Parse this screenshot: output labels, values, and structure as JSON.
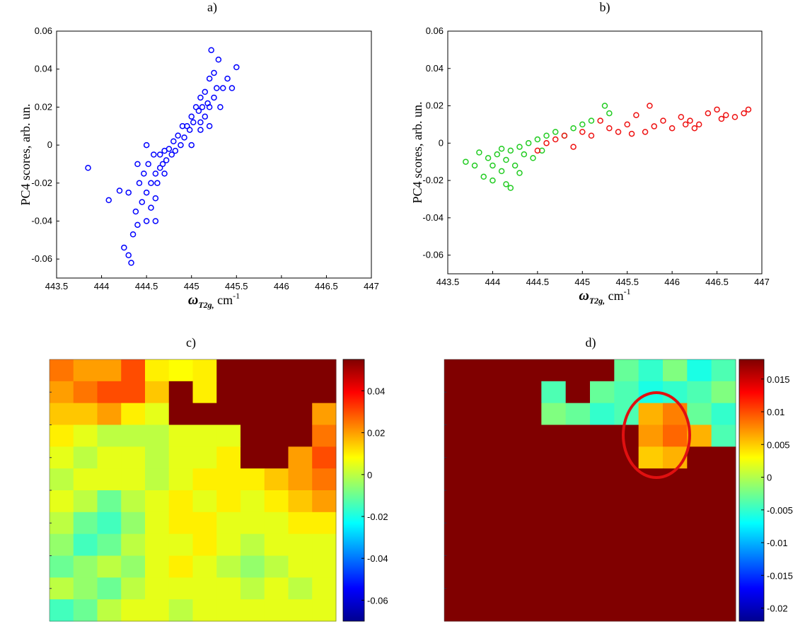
{
  "chart_data": [
    {
      "type": "scatter",
      "title": "a)",
      "ylabel": "PC4 scores, arb. un.",
      "xlabel": {
        "symbol": "ω",
        "subscript": "T2g,",
        "unit": " cm",
        "exponent": "-1"
      },
      "xlim": [
        443.5,
        447
      ],
      "xticks": [
        443.5,
        444,
        444.5,
        445,
        445.5,
        446,
        446.5,
        447
      ],
      "ylim": [
        -0.07,
        0.06
      ],
      "yticks": [
        0.06,
        0.04,
        0.02,
        0,
        -0.02,
        -0.04,
        -0.06
      ],
      "series": [
        {
          "color": "#0000ff",
          "x": [
            443.85,
            444.08,
            444.2,
            444.25,
            444.3,
            444.33,
            444.35,
            444.38,
            444.4,
            444.42,
            444.45,
            444.47,
            444.5,
            444.5,
            444.52,
            444.55,
            444.55,
            444.58,
            444.6,
            444.6,
            444.62,
            444.65,
            444.65,
            444.68,
            444.7,
            444.72,
            444.75,
            444.78,
            444.8,
            444.82,
            444.85,
            444.88,
            444.9,
            444.92,
            444.95,
            444.98,
            445.0,
            445.02,
            445.05,
            445.08,
            445.1,
            445.1,
            445.12,
            445.15,
            445.15,
            445.18,
            445.2,
            445.2,
            445.22,
            445.25,
            445.25,
            445.28,
            445.3,
            445.32,
            445.35,
            445.4,
            445.45,
            445.5,
            444.3,
            444.4,
            444.5,
            444.6,
            444.7,
            445.0,
            445.1,
            445.2
          ],
          "values": [
            -0.012,
            -0.029,
            -0.024,
            -0.054,
            -0.058,
            -0.062,
            -0.047,
            -0.035,
            -0.042,
            -0.02,
            -0.03,
            -0.015,
            -0.025,
            -0.04,
            -0.01,
            -0.02,
            -0.033,
            -0.005,
            -0.015,
            -0.028,
            -0.02,
            -0.005,
            -0.012,
            -0.01,
            -0.003,
            -0.008,
            -0.002,
            -0.005,
            0.002,
            -0.003,
            0.005,
            0.0,
            0.01,
            0.004,
            0.01,
            0.008,
            0.015,
            0.012,
            0.02,
            0.018,
            0.025,
            0.012,
            0.02,
            0.028,
            0.015,
            0.022,
            0.035,
            0.02,
            0.05,
            0.025,
            0.038,
            0.03,
            0.045,
            0.02,
            0.03,
            0.035,
            0.03,
            0.041,
            -0.025,
            -0.01,
            0.0,
            -0.04,
            -0.015,
            0.0,
            0.008,
            0.01
          ]
        }
      ]
    },
    {
      "type": "scatter",
      "title": "b)",
      "ylabel": "PC4 scores, arb. un.",
      "xlabel": {
        "symbol": "ω",
        "subscript": "T2g,",
        "unit": " cm",
        "exponent": "-1"
      },
      "xlim": [
        443.5,
        447
      ],
      "xticks": [
        443.5,
        444,
        444.5,
        445,
        445.5,
        446,
        446.5,
        447
      ],
      "ylim": [
        -0.07,
        0.06
      ],
      "yticks": [
        0.06,
        0.04,
        0.02,
        0,
        -0.02,
        -0.04,
        -0.06
      ],
      "series": [
        {
          "color": "#22cc22",
          "x": [
            443.7,
            443.8,
            443.85,
            443.9,
            443.95,
            444.0,
            444.0,
            444.05,
            444.1,
            444.1,
            444.15,
            444.15,
            444.2,
            444.2,
            444.25,
            444.3,
            444.3,
            444.35,
            444.4,
            444.45,
            444.5,
            444.55,
            444.6,
            444.7,
            444.8,
            444.9,
            445.0,
            445.1,
            445.25,
            445.3
          ],
          "values": [
            -0.01,
            -0.012,
            -0.005,
            -0.018,
            -0.008,
            -0.012,
            -0.02,
            -0.006,
            -0.015,
            -0.003,
            -0.022,
            -0.009,
            -0.024,
            -0.004,
            -0.012,
            -0.002,
            -0.016,
            -0.006,
            0.0,
            -0.008,
            0.002,
            -0.004,
            0.004,
            0.006,
            0.004,
            0.008,
            0.01,
            0.012,
            0.02,
            0.016
          ]
        },
        {
          "color": "#ee1111",
          "x": [
            444.5,
            444.6,
            444.7,
            444.8,
            444.9,
            445.0,
            445.1,
            445.2,
            445.3,
            445.4,
            445.5,
            445.6,
            445.7,
            445.75,
            445.8,
            445.9,
            446.0,
            446.1,
            446.15,
            446.2,
            446.3,
            446.4,
            446.5,
            446.55,
            446.6,
            446.7,
            446.8,
            446.85,
            445.55,
            446.25
          ],
          "values": [
            -0.004,
            0.0,
            0.002,
            0.004,
            -0.002,
            0.006,
            0.004,
            0.012,
            0.008,
            0.006,
            0.01,
            0.015,
            0.006,
            0.02,
            0.009,
            0.012,
            0.008,
            0.014,
            0.01,
            0.012,
            0.01,
            0.016,
            0.018,
            0.013,
            0.015,
            0.014,
            0.016,
            0.018,
            0.005,
            0.008
          ]
        }
      ]
    },
    {
      "type": "heatmap",
      "title": "c)",
      "zlim": [
        -0.07,
        0.055
      ],
      "colorbar_ticks": [
        0.04,
        0.02,
        0,
        -0.02,
        -0.04,
        -0.06
      ],
      "z": [
        [
          0.025,
          0.02,
          0.02,
          0.03,
          0.01,
          0.008,
          0.01,
          0.055,
          0.055,
          0.055,
          0.055,
          0.055
        ],
        [
          0.02,
          0.025,
          0.03,
          0.03,
          0.015,
          0.055,
          0.01,
          0.055,
          0.055,
          0.055,
          0.055,
          0.055
        ],
        [
          0.015,
          0.015,
          0.02,
          0.01,
          0.005,
          0.055,
          0.055,
          0.055,
          0.055,
          0.055,
          0.055,
          0.02
        ],
        [
          0.01,
          0.005,
          0.0,
          0.0,
          0.0,
          0.005,
          0.005,
          0.005,
          0.055,
          0.055,
          0.055,
          0.025
        ],
        [
          0.005,
          0.0,
          0.005,
          0.005,
          0.0,
          0.005,
          0.005,
          0.01,
          0.055,
          0.055,
          0.02,
          0.03
        ],
        [
          0.0,
          0.005,
          0.005,
          0.005,
          0.0,
          0.005,
          0.01,
          0.01,
          0.01,
          0.015,
          0.02,
          0.025
        ],
        [
          0.005,
          0.0,
          -0.01,
          0.0,
          0.005,
          0.01,
          0.005,
          0.01,
          0.005,
          0.01,
          0.015,
          0.02
        ],
        [
          0.0,
          -0.01,
          -0.015,
          -0.005,
          0.005,
          0.01,
          0.01,
          0.005,
          0.005,
          0.005,
          0.01,
          0.01
        ],
        [
          -0.005,
          -0.015,
          -0.01,
          0.0,
          0.005,
          0.005,
          0.01,
          0.005,
          0.0,
          0.005,
          0.005,
          0.005
        ],
        [
          -0.01,
          -0.005,
          0.0,
          -0.005,
          0.005,
          0.01,
          0.005,
          0.0,
          -0.005,
          0.0,
          0.005,
          0.005
        ],
        [
          0.0,
          -0.005,
          -0.01,
          0.0,
          0.005,
          0.005,
          0.005,
          0.005,
          0.0,
          0.005,
          0.0,
          0.005
        ],
        [
          -0.015,
          -0.01,
          0.0,
          0.005,
          0.005,
          0.0,
          0.005,
          0.005,
          0.005,
          0.005,
          0.005,
          0.005
        ]
      ]
    },
    {
      "type": "heatmap",
      "title": "d)",
      "zlim": [
        -0.022,
        0.018
      ],
      "colorbar_ticks": [
        0.015,
        0.01,
        0.005,
        0,
        -0.005,
        -0.01,
        -0.015,
        -0.02
      ],
      "z": [
        [
          0.018,
          0.018,
          0.018,
          0.018,
          0.018,
          0.018,
          0.018,
          -0.003,
          -0.005,
          -0.002,
          -0.006,
          -0.004
        ],
        [
          0.018,
          0.018,
          0.018,
          0.018,
          -0.004,
          0.018,
          -0.003,
          -0.004,
          -0.006,
          -0.005,
          -0.004,
          -0.002
        ],
        [
          0.018,
          0.018,
          0.018,
          0.018,
          -0.002,
          -0.003,
          -0.005,
          -0.004,
          0.006,
          0.008,
          -0.003,
          -0.005
        ],
        [
          0.018,
          0.018,
          0.018,
          0.018,
          0.018,
          0.018,
          0.018,
          0.018,
          0.007,
          0.009,
          0.006,
          -0.004
        ],
        [
          0.018,
          0.018,
          0.018,
          0.018,
          0.018,
          0.018,
          0.018,
          0.018,
          0.005,
          0.006,
          0.018,
          0.018
        ],
        [
          0.018,
          0.018,
          0.018,
          0.018,
          0.018,
          0.018,
          0.018,
          0.018,
          0.018,
          0.018,
          0.018,
          0.018
        ],
        [
          0.018,
          0.018,
          0.018,
          0.018,
          0.018,
          0.018,
          0.018,
          0.018,
          0.018,
          0.018,
          0.018,
          0.018
        ],
        [
          0.018,
          0.018,
          0.018,
          0.018,
          0.018,
          0.018,
          0.018,
          0.018,
          0.018,
          0.018,
          0.018,
          0.018
        ],
        [
          0.018,
          0.018,
          0.018,
          0.018,
          0.018,
          0.018,
          0.018,
          0.018,
          0.018,
          0.018,
          0.018,
          0.018
        ],
        [
          0.018,
          0.018,
          0.018,
          0.018,
          0.018,
          0.018,
          0.018,
          0.018,
          0.018,
          0.018,
          0.018,
          0.018
        ],
        [
          0.018,
          0.018,
          0.018,
          0.018,
          0.018,
          0.018,
          0.018,
          0.018,
          0.018,
          0.018,
          0.018,
          0.018
        ],
        [
          0.018,
          0.018,
          0.018,
          0.018,
          0.018,
          0.018,
          0.018,
          0.018,
          0.018,
          0.018,
          0.018,
          0.018
        ]
      ]
    }
  ]
}
